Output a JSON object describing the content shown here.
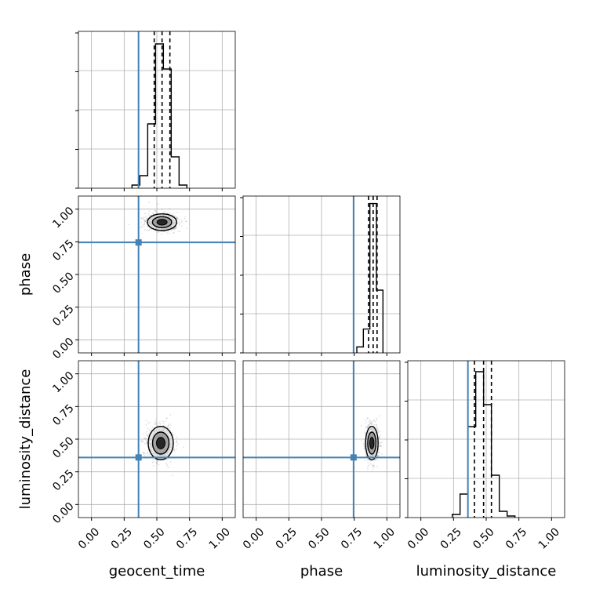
{
  "chart_data": {
    "type": "corner",
    "parameters": [
      "geocent_time",
      "phase",
      "luminosity_distance"
    ],
    "range": [
      -0.1,
      1.1
    ],
    "ticks": [
      0.0,
      0.25,
      0.5,
      0.75,
      1.0
    ],
    "tick_labels": [
      "0.00",
      "0.25",
      "0.50",
      "0.75",
      "1.00"
    ],
    "truths": [
      0.36,
      0.745,
      0.36
    ],
    "truth_color": "#4682b4",
    "grid": true,
    "histograms": [
      {
        "parameter": "geocent_time",
        "edges": [
          0.31,
          0.37,
          0.43,
          0.49,
          0.55,
          0.61,
          0.67,
          0.73
        ],
        "counts": [
          0.02,
          0.08,
          0.41,
          0.92,
          0.76,
          0.2,
          0.02
        ],
        "ylim": [
          0,
          1.0
        ],
        "quantiles": [
          0.48,
          0.54,
          0.6
        ]
      },
      {
        "parameter": "phase",
        "edges": [
          0.77,
          0.82,
          0.87,
          0.92,
          0.97
        ],
        "counts": [
          0.04,
          0.16,
          1.0,
          0.42
        ],
        "ylim": [
          0,
          1.05
        ],
        "quantiles": [
          0.86,
          0.895,
          0.925
        ]
      },
      {
        "parameter": "luminosity_distance",
        "edges": [
          0.24,
          0.3,
          0.36,
          0.42,
          0.48,
          0.54,
          0.6,
          0.66,
          0.72
        ],
        "counts": [
          0.02,
          0.15,
          0.58,
          0.93,
          0.72,
          0.27,
          0.04,
          0.01
        ],
        "ylim": [
          0,
          1.0
        ],
        "quantiles": [
          0.41,
          0.48,
          0.54
        ]
      }
    ],
    "density_2d": [
      {
        "x": "geocent_time",
        "y": "phase",
        "center": [
          0.54,
          0.9
        ],
        "spread": [
          0.07,
          0.04
        ]
      },
      {
        "x": "geocent_time",
        "y": "luminosity_distance",
        "center": [
          0.53,
          0.47
        ],
        "spread": [
          0.06,
          0.08
        ]
      },
      {
        "x": "phase",
        "y": "luminosity_distance",
        "center": [
          0.885,
          0.47
        ],
        "spread": [
          0.03,
          0.08
        ]
      }
    ]
  }
}
